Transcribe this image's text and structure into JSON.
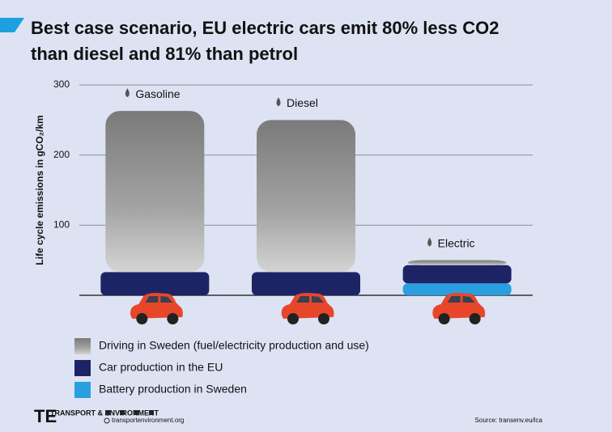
{
  "chart_data": {
    "type": "stacked-bar",
    "title_lines": [
      "Best case scenario, EU electric cars emit 80% less CO2",
      "than diesel and 81% than petrol"
    ],
    "y_label": "Life cycle emissions in gCO₂/km",
    "categories": [
      "Gasoline",
      "Diesel",
      "Electric"
    ],
    "series": [
      {
        "name": "Battery production in Sweden",
        "color": "#2a9fe0",
        "values": [
          0,
          0,
          17
        ]
      },
      {
        "name": "Car production in the EU",
        "color": "#1c2466",
        "values": [
          33,
          33,
          26
        ]
      },
      {
        "name": "Driving in Sweden (fuel/electricity production and use)",
        "color": "#8c8c8c",
        "values": [
          230,
          217,
          7
        ]
      }
    ],
    "legend_order": [
      2,
      1,
      0
    ],
    "ylim": [
      0,
      300
    ],
    "yticks": [
      100,
      200,
      300
    ],
    "grid": true,
    "footer": {
      "brand": "TRANSPORT & ENVIRONMENT",
      "site": "transportenvironment.org",
      "source": "Source: transenv.eu/lca"
    }
  }
}
